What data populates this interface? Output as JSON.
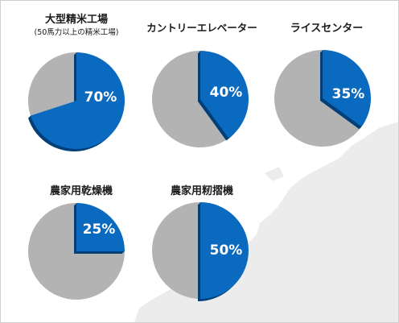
{
  "chart_data": [
    {
      "type": "pie",
      "title": "大型精米工場",
      "subtitle": "(50馬力以上の精米工場)",
      "value": 70,
      "value_label": "70%"
    },
    {
      "type": "pie",
      "title": "カントリーエレベーター",
      "value": 40,
      "value_label": "40%"
    },
    {
      "type": "pie",
      "title": "ライスセンター",
      "value": 35,
      "value_label": "35%"
    },
    {
      "type": "pie",
      "title": "農家用乾燥機",
      "value": 25,
      "value_label": "25%"
    },
    {
      "type": "pie",
      "title": "農家用籾摺機",
      "value": 50,
      "value_label": "50%"
    }
  ],
  "colors": {
    "share_fill": "#0a6abf",
    "share_side": "#003f77",
    "rest_fill": "#b3b3b3",
    "rest_side": "#9a9a9a",
    "label": "#ffffff",
    "map": "#ececec"
  }
}
